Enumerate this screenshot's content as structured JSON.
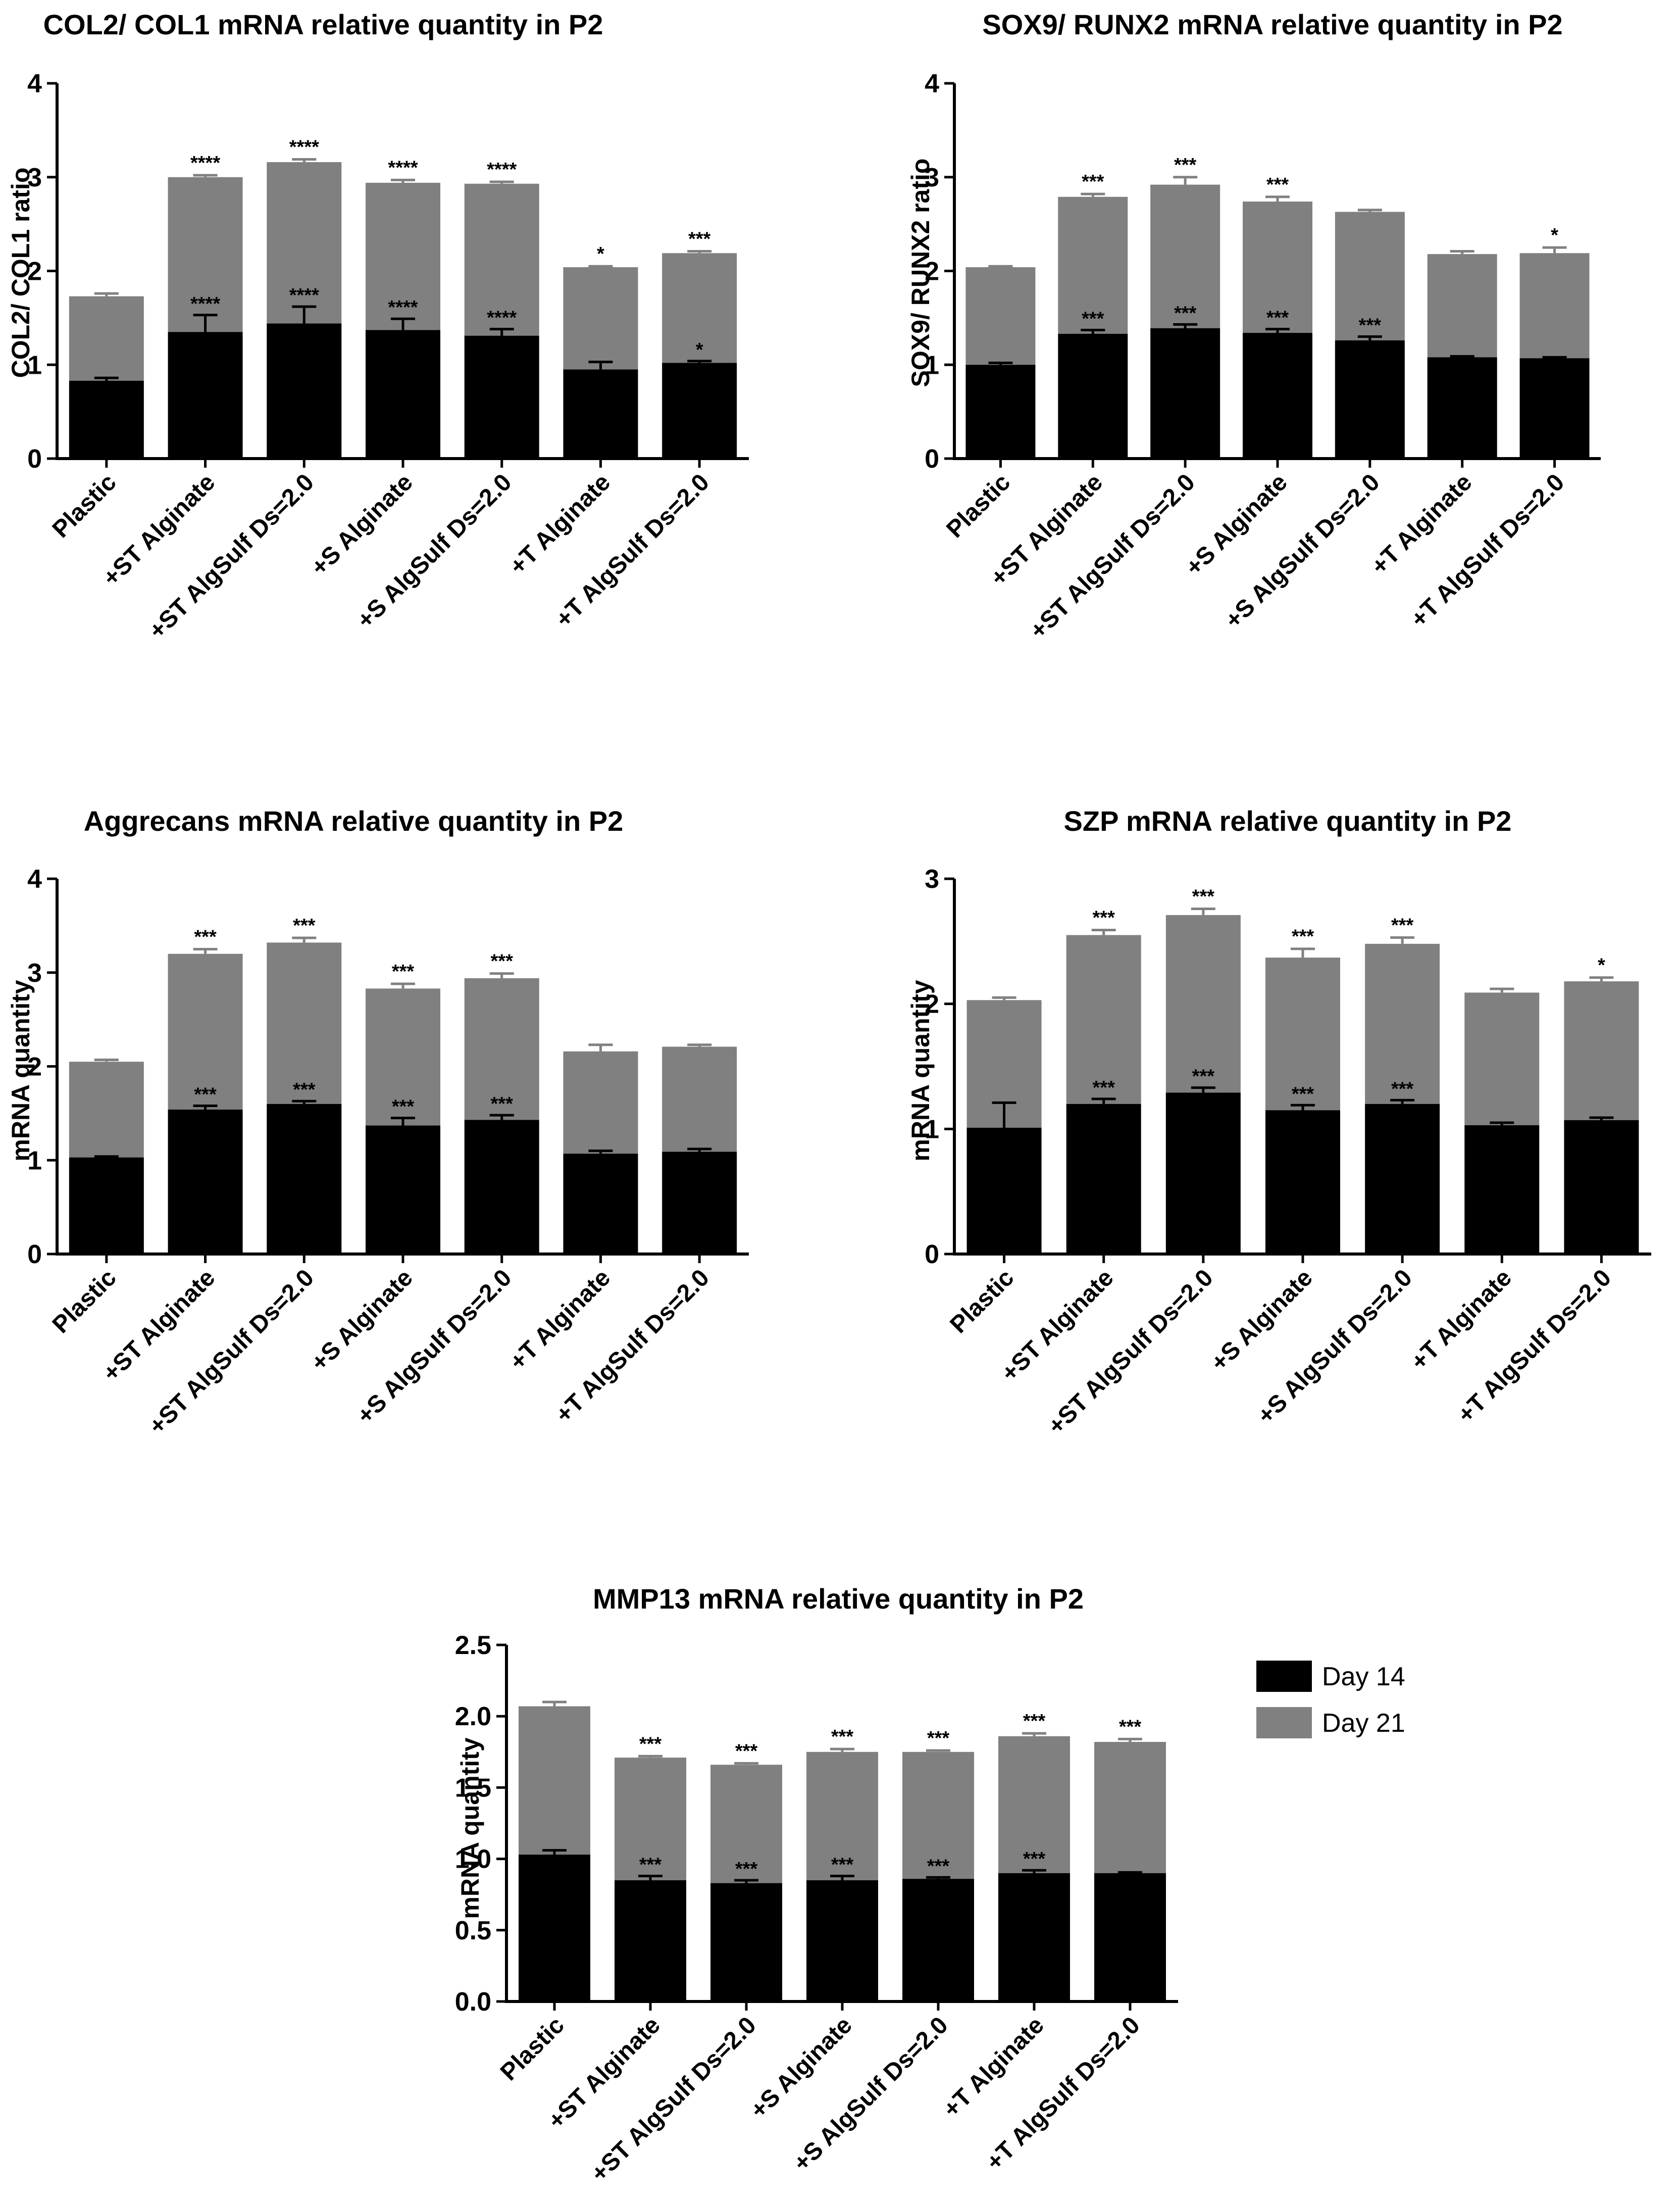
{
  "legend": [
    {
      "label": "Day 14",
      "color": "#000000"
    },
    {
      "label": "Day 21",
      "color": "#808080"
    }
  ],
  "chart_data": [
    {
      "type": "bar",
      "stacked": true,
      "title": "COL2/ COL1 mRNA relative quantity in P2",
      "ylabel": "COL2/ COL1 ratio",
      "xlabel": "",
      "ylim": [
        0,
        4
      ],
      "yticks": [
        "0",
        "1",
        "2",
        "3",
        "4"
      ],
      "categories": [
        "Plastic",
        "+ST Alginate",
        "+ST AlgSulf Ds=2.0",
        "+S Alginate",
        "+S AlgSulf Ds=2.0",
        "+T Alginate",
        "+T AlgSulf Ds=2.0"
      ],
      "series": [
        {
          "name": "Day 14",
          "values": [
            0.83,
            1.35,
            1.44,
            1.37,
            1.31,
            0.95,
            1.02
          ],
          "errors": [
            0.03,
            0.18,
            0.18,
            0.12,
            0.07,
            0.08,
            0.02
          ],
          "significance": [
            "",
            "****",
            "****",
            "****",
            "****",
            "",
            "*"
          ]
        },
        {
          "name": "Day 21",
          "totals": [
            1.73,
            3.0,
            3.16,
            2.94,
            2.93,
            2.04,
            2.19
          ],
          "errors": [
            0.03,
            0.02,
            0.03,
            0.03,
            0.02,
            0.01,
            0.02
          ],
          "significance": [
            "",
            "****",
            "****",
            "****",
            "****",
            "*",
            "***"
          ]
        }
      ]
    },
    {
      "type": "bar",
      "stacked": true,
      "title": "SOX9/ RUNX2 mRNA relative quantity in P2",
      "ylabel": "SOX9/ RUNX2 ratio",
      "xlabel": "",
      "ylim": [
        0,
        4
      ],
      "yticks": [
        "0",
        "1",
        "2",
        "3",
        "4"
      ],
      "categories": [
        "Plastic",
        "+ST Alginate",
        "+ST AlgSulf Ds=2.0",
        "+S Alginate",
        "+S AlgSulf Ds=2.0",
        "+T Alginate",
        "+T AlgSulf Ds=2.0"
      ],
      "series": [
        {
          "name": "Day 14",
          "values": [
            1.0,
            1.33,
            1.39,
            1.34,
            1.26,
            1.08,
            1.07
          ],
          "errors": [
            0.02,
            0.04,
            0.04,
            0.04,
            0.04,
            0.01,
            0.01
          ],
          "significance": [
            "",
            "***",
            "***",
            "***",
            "***",
            "",
            ""
          ]
        },
        {
          "name": "Day 21",
          "totals": [
            2.04,
            2.79,
            2.92,
            2.74,
            2.63,
            2.18,
            2.19
          ],
          "errors": [
            0.01,
            0.03,
            0.08,
            0.05,
            0.02,
            0.03,
            0.06
          ],
          "significance": [
            "",
            "***",
            "***",
            "***",
            "",
            "",
            "*"
          ]
        }
      ]
    },
    {
      "type": "bar",
      "stacked": true,
      "title": "Aggrecans mRNA relative quantity in P2",
      "ylabel": "mRNA quantity",
      "xlabel": "",
      "ylim": [
        0,
        4
      ],
      "yticks": [
        "0",
        "1",
        "2",
        "3",
        "4"
      ],
      "categories": [
        "Plastic",
        "+ST Alginate",
        "+ST AlgSulf Ds=2.0",
        "+S Alginate",
        "+S AlgSulf Ds=2.0",
        "+T Alginate",
        "+T AlgSulf Ds=2.0"
      ],
      "series": [
        {
          "name": "Day 14",
          "values": [
            1.03,
            1.54,
            1.6,
            1.37,
            1.43,
            1.07,
            1.09
          ],
          "errors": [
            0.01,
            0.04,
            0.03,
            0.08,
            0.05,
            0.03,
            0.03
          ],
          "significance": [
            "",
            "***",
            "***",
            "***",
            "***",
            "",
            ""
          ]
        },
        {
          "name": "Day 21",
          "totals": [
            2.05,
            3.2,
            3.32,
            2.83,
            2.94,
            2.16,
            2.21
          ],
          "errors": [
            0.02,
            0.05,
            0.05,
            0.05,
            0.05,
            0.07,
            0.02
          ],
          "significance": [
            "",
            "***",
            "***",
            "***",
            "***",
            "",
            ""
          ]
        }
      ]
    },
    {
      "type": "bar",
      "stacked": true,
      "title": "SZP mRNA relative quantity in P2",
      "ylabel": "mRNA quantity",
      "xlabel": "",
      "ylim": [
        0,
        3
      ],
      "yticks": [
        "0",
        "1",
        "2",
        "3"
      ],
      "categories": [
        "Plastic",
        "+ST Alginate",
        "+ST AlgSulf Ds=2.0",
        "+S Alginate",
        "+S AlgSulf Ds=2.0",
        "+T Alginate",
        "+T AlgSulf Ds=2.0"
      ],
      "series": [
        {
          "name": "Day 14",
          "values": [
            1.01,
            1.2,
            1.29,
            1.15,
            1.2,
            1.03,
            1.07
          ],
          "errors": [
            0.2,
            0.04,
            0.04,
            0.04,
            0.03,
            0.02,
            0.02
          ],
          "significance": [
            "",
            "***",
            "***",
            "***",
            "***",
            "",
            ""
          ]
        },
        {
          "name": "Day 21",
          "totals": [
            2.03,
            2.55,
            2.71,
            2.37,
            2.48,
            2.09,
            2.18
          ],
          "errors": [
            0.02,
            0.04,
            0.05,
            0.07,
            0.05,
            0.03,
            0.03
          ],
          "significance": [
            "",
            "***",
            "***",
            "***",
            "***",
            "",
            "*"
          ]
        }
      ]
    },
    {
      "type": "bar",
      "stacked": true,
      "title": "MMP13 mRNA relative quantity in P2",
      "ylabel": "mRNA quantity",
      "xlabel": "",
      "ylim": [
        0,
        2.5
      ],
      "yticks": [
        "0.0",
        "0.5",
        "1.0",
        "1.5",
        "2.0",
        "2.5"
      ],
      "categories": [
        "Plastic",
        "+ST Alginate",
        "+ST AlgSulf Ds=2.0",
        "+S Alginate",
        "+S AlgSulf Ds=2.0",
        "+T Alginate",
        "+T AlgSulf Ds=2.0"
      ],
      "series": [
        {
          "name": "Day 14",
          "values": [
            1.03,
            0.85,
            0.83,
            0.85,
            0.86,
            0.9,
            0.9
          ],
          "errors": [
            0.03,
            0.03,
            0.02,
            0.03,
            0.01,
            0.02,
            0.005
          ],
          "significance": [
            "",
            "***",
            "***",
            "***",
            "***",
            "***",
            ""
          ]
        },
        {
          "name": "Day 21",
          "totals": [
            2.07,
            1.71,
            1.66,
            1.75,
            1.75,
            1.86,
            1.82
          ],
          "errors": [
            0.03,
            0.01,
            0.01,
            0.02,
            0.01,
            0.02,
            0.02
          ],
          "significance": [
            "",
            "***",
            "***",
            "***",
            "***",
            "***",
            "***"
          ]
        }
      ]
    }
  ]
}
